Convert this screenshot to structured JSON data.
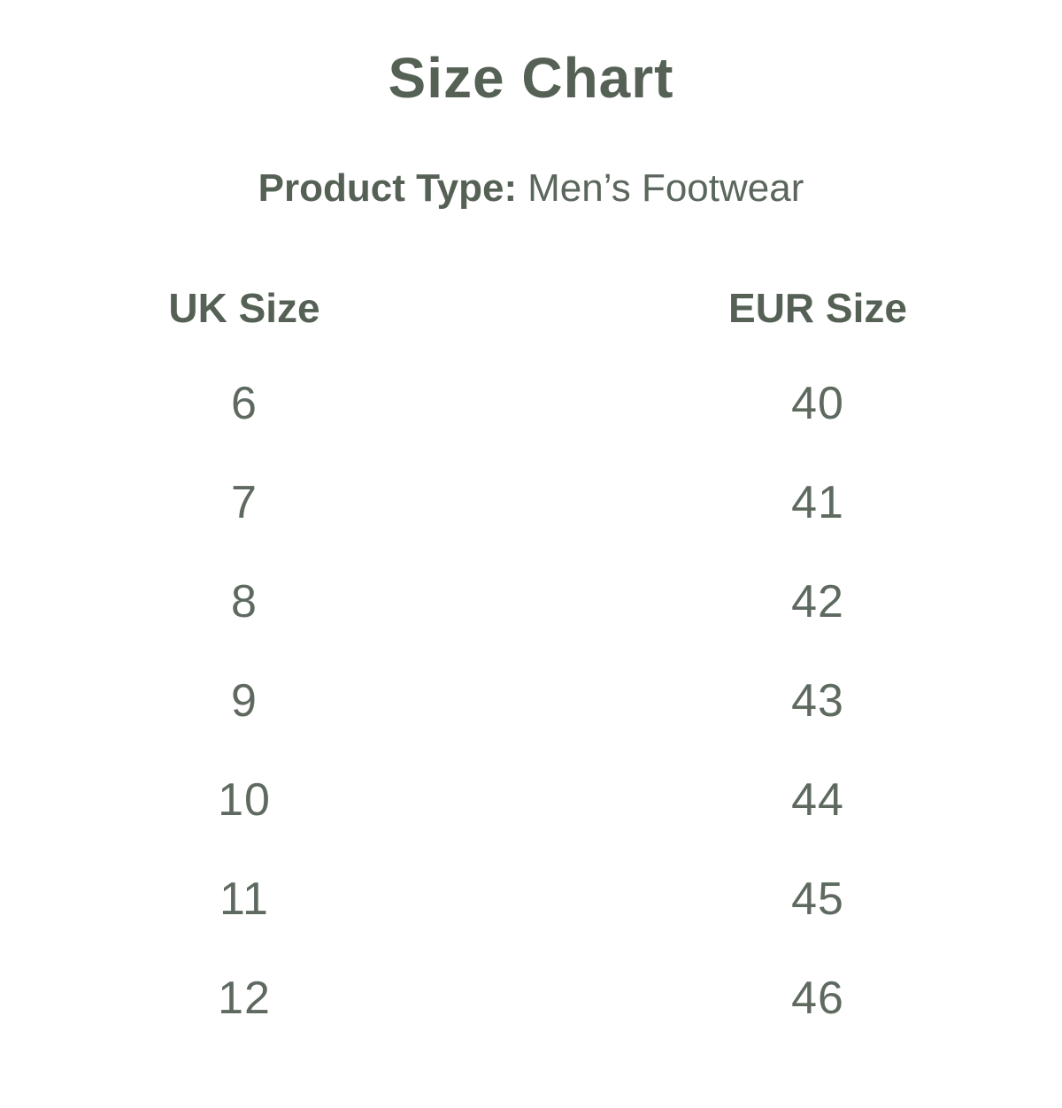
{
  "header": {
    "title": "Size Chart",
    "product_type_label": "Product Type:",
    "product_type_value": "Men’s Footwear"
  },
  "size_table": {
    "column_headers": {
      "uk": "UK Size",
      "eur": "EUR Size"
    },
    "rows": [
      {
        "uk": "6",
        "eur": "40"
      },
      {
        "uk": "7",
        "eur": "41"
      },
      {
        "uk": "8",
        "eur": "42"
      },
      {
        "uk": "9",
        "eur": "43"
      },
      {
        "uk": "10",
        "eur": "44"
      },
      {
        "uk": "11",
        "eur": "45"
      },
      {
        "uk": "12",
        "eur": "46"
      }
    ]
  },
  "colors": {
    "background": "#ffffff",
    "text_primary": "#566156",
    "text_numbers": "#5e6a5f"
  },
  "chart_data": {
    "type": "table",
    "title": "Size Chart",
    "subtitle": "Product Type: Men’s Footwear",
    "columns": [
      "UK Size",
      "EUR Size"
    ],
    "rows": [
      [
        "6",
        "40"
      ],
      [
        "7",
        "41"
      ],
      [
        "8",
        "42"
      ],
      [
        "9",
        "43"
      ],
      [
        "10",
        "44"
      ],
      [
        "11",
        "45"
      ],
      [
        "12",
        "46"
      ]
    ],
    "layout": "two centered columns, no gridlines, white background"
  }
}
